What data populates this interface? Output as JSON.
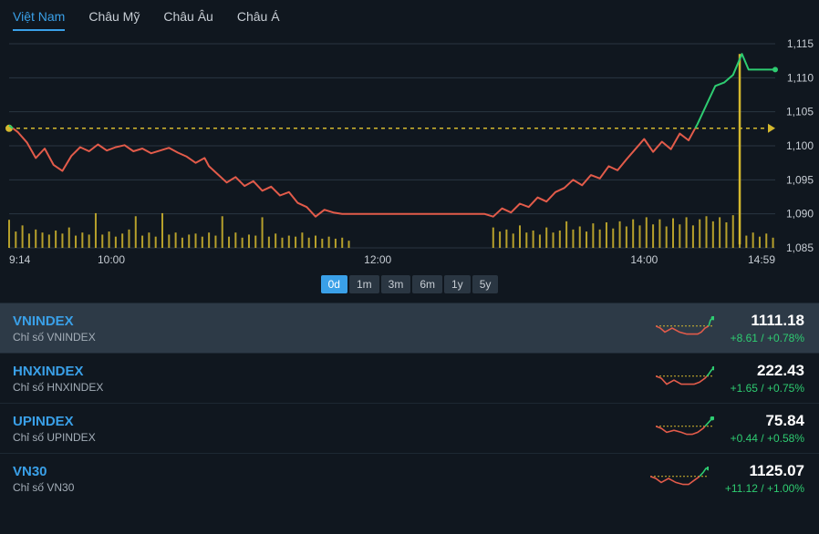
{
  "tabs": [
    {
      "label": "Việt Nam",
      "active": true
    },
    {
      "label": "Châu Mỹ"
    },
    {
      "label": "Châu Âu"
    },
    {
      "label": "Châu Á"
    }
  ],
  "chart": {
    "type": "line+volume",
    "background": "#10171f",
    "ylim": [
      1085,
      1115
    ],
    "yticks": [
      1085,
      1090,
      1095,
      1100,
      1105,
      1110,
      1115
    ],
    "xticks": [
      {
        "label": "9:14",
        "t": 0
      },
      {
        "label": "10:00",
        "t": 46
      },
      {
        "label": "12:00",
        "t": 166
      },
      {
        "label": "14:00",
        "t": 286
      },
      {
        "label": "14:59",
        "t": 345
      }
    ],
    "tmax": 345,
    "ref_value": 1102.57,
    "ref_color": "#d4b82e",
    "price_up_color": "#2ecc71",
    "price_down_color": "#e25b4a",
    "grid_color": "#2a3642",
    "tick_fontsize": 12,
    "tick_color": "#c7cdd4",
    "volume_color": "#d4b82e",
    "price": [
      [
        0,
        1103
      ],
      [
        4,
        1102
      ],
      [
        8,
        1100.5
      ],
      [
        12,
        1098.2
      ],
      [
        16,
        1099.6
      ],
      [
        20,
        1097.2
      ],
      [
        24,
        1096.3
      ],
      [
        28,
        1098.5
      ],
      [
        32,
        1099.8
      ],
      [
        36,
        1099.2
      ],
      [
        40,
        1100.2
      ],
      [
        44,
        1099.3
      ],
      [
        48,
        1099.8
      ],
      [
        52,
        1100.1
      ],
      [
        56,
        1099.2
      ],
      [
        60,
        1099.6
      ],
      [
        64,
        1098.9
      ],
      [
        68,
        1099.3
      ],
      [
        72,
        1099.7
      ],
      [
        76,
        1099.0
      ],
      [
        80,
        1098.4
      ],
      [
        84,
        1097.5
      ],
      [
        88,
        1098.2
      ],
      [
        90,
        1097.0
      ],
      [
        94,
        1095.8
      ],
      [
        98,
        1094.6
      ],
      [
        102,
        1095.4
      ],
      [
        106,
        1094.1
      ],
      [
        110,
        1094.8
      ],
      [
        114,
        1093.4
      ],
      [
        118,
        1094.0
      ],
      [
        122,
        1092.7
      ],
      [
        126,
        1093.2
      ],
      [
        130,
        1091.6
      ],
      [
        134,
        1091.0
      ],
      [
        138,
        1089.6
      ],
      [
        142,
        1090.6
      ],
      [
        146,
        1090.2
      ],
      [
        150,
        1090.0
      ],
      [
        154,
        1090.0
      ],
      [
        158,
        1090.0
      ],
      [
        162,
        1090.0
      ],
      [
        166,
        1090.0
      ],
      [
        170,
        1090.0
      ],
      [
        174,
        1090.0
      ],
      [
        178,
        1090.0
      ],
      [
        182,
        1090.0
      ],
      [
        186,
        1090.0
      ],
      [
        190,
        1090.0
      ],
      [
        194,
        1090.0
      ],
      [
        198,
        1090.0
      ],
      [
        202,
        1090.0
      ],
      [
        206,
        1090.0
      ],
      [
        210,
        1090.0
      ],
      [
        214,
        1090.0
      ],
      [
        218,
        1089.6
      ],
      [
        222,
        1090.8
      ],
      [
        226,
        1090.2
      ],
      [
        230,
        1091.5
      ],
      [
        234,
        1091.0
      ],
      [
        238,
        1092.4
      ],
      [
        242,
        1091.8
      ],
      [
        246,
        1093.2
      ],
      [
        250,
        1093.8
      ],
      [
        254,
        1095.0
      ],
      [
        258,
        1094.2
      ],
      [
        262,
        1095.7
      ],
      [
        266,
        1095.2
      ],
      [
        270,
        1097.0
      ],
      [
        274,
        1096.4
      ],
      [
        278,
        1098.0
      ],
      [
        282,
        1099.5
      ],
      [
        286,
        1101.0
      ],
      [
        290,
        1099.1
      ],
      [
        294,
        1100.6
      ],
      [
        298,
        1099.5
      ],
      [
        302,
        1101.8
      ],
      [
        306,
        1100.8
      ],
      [
        310,
        1103.2
      ],
      [
        314,
        1106.0
      ],
      [
        318,
        1108.8
      ],
      [
        322,
        1109.3
      ],
      [
        326,
        1110.4
      ],
      [
        330,
        1113.5
      ],
      [
        333,
        1111.2
      ],
      [
        337,
        1111.2
      ],
      [
        341,
        1111.2
      ],
      [
        345,
        1111.2
      ]
    ],
    "volume": [
      [
        0,
        55
      ],
      [
        3,
        32
      ],
      [
        6,
        44
      ],
      [
        9,
        28
      ],
      [
        12,
        36
      ],
      [
        15,
        30
      ],
      [
        18,
        26
      ],
      [
        21,
        34
      ],
      [
        24,
        28
      ],
      [
        27,
        40
      ],
      [
        30,
        24
      ],
      [
        33,
        30
      ],
      [
        36,
        26
      ],
      [
        39,
        68
      ],
      [
        42,
        26
      ],
      [
        45,
        32
      ],
      [
        48,
        22
      ],
      [
        51,
        28
      ],
      [
        54,
        36
      ],
      [
        57,
        62
      ],
      [
        60,
        24
      ],
      [
        63,
        30
      ],
      [
        66,
        22
      ],
      [
        69,
        68
      ],
      [
        72,
        26
      ],
      [
        75,
        30
      ],
      [
        78,
        20
      ],
      [
        81,
        26
      ],
      [
        84,
        28
      ],
      [
        87,
        22
      ],
      [
        90,
        30
      ],
      [
        93,
        24
      ],
      [
        96,
        62
      ],
      [
        99,
        22
      ],
      [
        102,
        30
      ],
      [
        105,
        20
      ],
      [
        108,
        26
      ],
      [
        111,
        24
      ],
      [
        114,
        60
      ],
      [
        117,
        22
      ],
      [
        120,
        28
      ],
      [
        123,
        20
      ],
      [
        126,
        24
      ],
      [
        129,
        22
      ],
      [
        132,
        30
      ],
      [
        135,
        20
      ],
      [
        138,
        24
      ],
      [
        141,
        18
      ],
      [
        144,
        22
      ],
      [
        147,
        18
      ],
      [
        150,
        20
      ],
      [
        153,
        14
      ],
      [
        218,
        40
      ],
      [
        221,
        32
      ],
      [
        224,
        36
      ],
      [
        227,
        28
      ],
      [
        230,
        44
      ],
      [
        233,
        30
      ],
      [
        236,
        34
      ],
      [
        239,
        26
      ],
      [
        242,
        40
      ],
      [
        245,
        30
      ],
      [
        248,
        34
      ],
      [
        251,
        52
      ],
      [
        254,
        36
      ],
      [
        257,
        42
      ],
      [
        260,
        32
      ],
      [
        263,
        48
      ],
      [
        266,
        36
      ],
      [
        269,
        50
      ],
      [
        272,
        38
      ],
      [
        275,
        52
      ],
      [
        278,
        42
      ],
      [
        281,
        56
      ],
      [
        284,
        44
      ],
      [
        287,
        60
      ],
      [
        290,
        46
      ],
      [
        293,
        56
      ],
      [
        296,
        42
      ],
      [
        299,
        58
      ],
      [
        302,
        46
      ],
      [
        305,
        60
      ],
      [
        308,
        44
      ],
      [
        311,
        56
      ],
      [
        314,
        62
      ],
      [
        317,
        52
      ],
      [
        320,
        60
      ],
      [
        323,
        50
      ],
      [
        326,
        64
      ],
      [
        329,
        100
      ],
      [
        332,
        24
      ],
      [
        335,
        30
      ],
      [
        338,
        22
      ],
      [
        341,
        28
      ],
      [
        344,
        20
      ]
    ],
    "vol_max": 100
  },
  "timeButtons": [
    {
      "label": "0d",
      "active": true
    },
    {
      "label": "1m"
    },
    {
      "label": "3m"
    },
    {
      "label": "6m"
    },
    {
      "label": "1y"
    },
    {
      "label": "5y"
    }
  ],
  "indices": [
    {
      "symbol": "VNINDEX",
      "desc": "Chỉ số VNINDEX",
      "price": "1111.18",
      "change": "+8.61 / +0.78%",
      "selected": true,
      "spark_color_down": "#e25b4a",
      "spark_color_up": "#2ecc71",
      "spark_ref": "#d4b82e",
      "spark": [
        [
          0,
          6
        ],
        [
          5,
          5
        ],
        [
          10,
          3
        ],
        [
          18,
          5
        ],
        [
          26,
          3
        ],
        [
          34,
          2
        ],
        [
          40,
          2
        ],
        [
          46,
          2
        ],
        [
          50,
          3
        ],
        [
          54,
          5
        ],
        [
          58,
          6
        ],
        [
          60,
          9
        ],
        [
          63,
          10
        ]
      ]
    },
    {
      "symbol": "HNXINDEX",
      "desc": "Chỉ số HNXINDEX",
      "price": "222.43",
      "change": "+1.65 / +0.75%",
      "spark_color_down": "#e25b4a",
      "spark_color_up": "#2ecc71",
      "spark_ref": "#d4b82e",
      "spark": [
        [
          0,
          6
        ],
        [
          6,
          5
        ],
        [
          12,
          2
        ],
        [
          20,
          4
        ],
        [
          28,
          2
        ],
        [
          36,
          2
        ],
        [
          42,
          2
        ],
        [
          48,
          3
        ],
        [
          54,
          5
        ],
        [
          58,
          7
        ],
        [
          61,
          9
        ],
        [
          64,
          10
        ]
      ]
    },
    {
      "symbol": "UPINDEX",
      "desc": "Chỉ số UPINDEX",
      "price": "75.84",
      "change": "+0.44 / +0.58%",
      "spark_color_down": "#e25b4a",
      "spark_color_up": "#2ecc71",
      "spark_ref": "#d4b82e",
      "spark": [
        [
          0,
          6
        ],
        [
          6,
          5
        ],
        [
          12,
          3
        ],
        [
          20,
          4
        ],
        [
          28,
          3
        ],
        [
          34,
          2
        ],
        [
          40,
          2
        ],
        [
          46,
          3
        ],
        [
          52,
          5
        ],
        [
          58,
          8
        ],
        [
          62,
          10
        ]
      ]
    },
    {
      "symbol": "VN30",
      "desc": "Chỉ số VN30",
      "price": "1125.07",
      "change": "+11.12 / +1.00%",
      "spark_color_down": "#e25b4a",
      "spark_color_up": "#2ecc71",
      "spark_ref": "#d4b82e",
      "spark": [
        [
          0,
          6
        ],
        [
          6,
          5
        ],
        [
          12,
          3
        ],
        [
          20,
          5
        ],
        [
          28,
          3
        ],
        [
          36,
          2
        ],
        [
          42,
          2
        ],
        [
          48,
          4
        ],
        [
          54,
          6
        ],
        [
          58,
          8
        ],
        [
          61,
          10
        ],
        [
          64,
          10
        ]
      ]
    }
  ]
}
